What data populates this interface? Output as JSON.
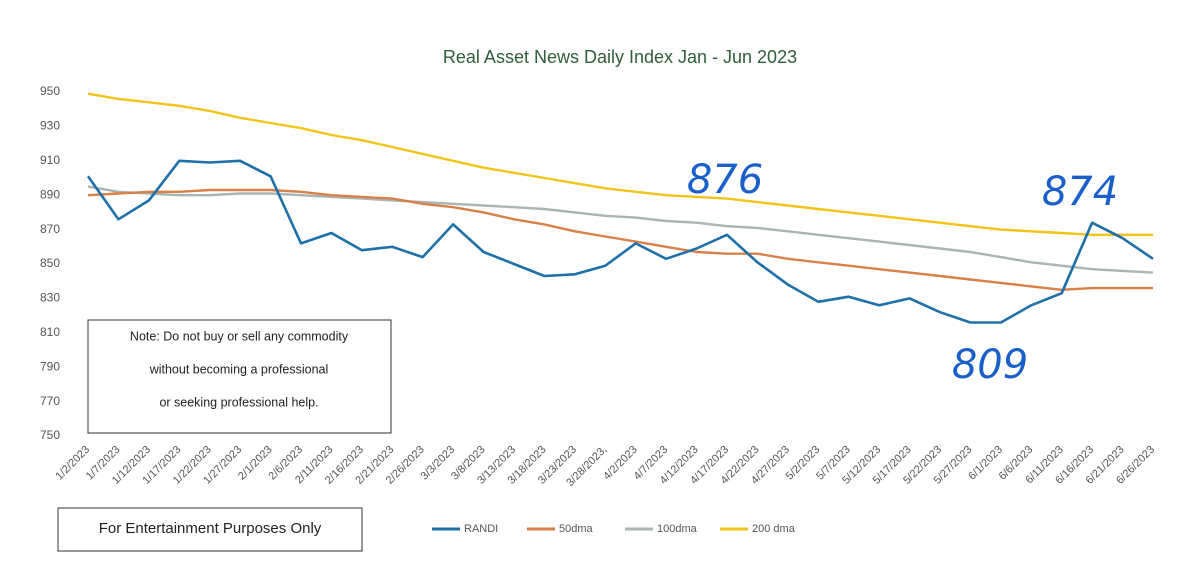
{
  "chart_data": {
    "type": "line",
    "title": "Real Asset News Daily Index   Jan - Jun 2023",
    "categories": [
      "1/2/2023",
      "1/7/2023",
      "1/12/2023",
      "1/17/2023",
      "1/22/2023",
      "1/27/2023",
      "2/1/2023",
      "2/6/2023",
      "2/11/2023",
      "2/16/2023",
      "2/21/2023",
      "2/26/2023",
      "3/3/2023",
      "3/8/2023",
      "3/13/2023",
      "3/18/2023",
      "3/23/2023",
      "3/28/2023,",
      "4/2/2023",
      "4/7/2023",
      "4/12/2023",
      "4/17/2023",
      "4/22/2023",
      "4/27/2023",
      "5/2/2023",
      "5/7/2023",
      "5/12/2023",
      "5/17/2023",
      "5/22/2023",
      "5/27/2023",
      "6/1/2023",
      "6/6/2023",
      "6/11/2023",
      "6/16/2023",
      "6/21/2023",
      "6/26/2023"
    ],
    "series": [
      {
        "name": "RANDI",
        "color": "#1f6fa8",
        "values": [
          901,
          876,
          887,
          910,
          909,
          910,
          901,
          862,
          868,
          858,
          860,
          854,
          873,
          857,
          850,
          843,
          844,
          849,
          862,
          853,
          859,
          867,
          851,
          838,
          828,
          831,
          826,
          830,
          822,
          816,
          816,
          826,
          833,
          874,
          865,
          853
        ]
      },
      {
        "name": "50dma",
        "color": "#d9804a",
        "values": [
          890,
          891,
          892,
          892,
          893,
          893,
          893,
          892,
          890,
          889,
          888,
          885,
          883,
          880,
          876,
          873,
          869,
          866,
          863,
          860,
          857,
          856,
          856,
          853,
          851,
          849,
          847,
          845,
          843,
          841,
          839,
          837,
          835,
          836,
          836,
          836
        ]
      },
      {
        "name": "100dma",
        "color": "#a9b5b0",
        "values": [
          895,
          892,
          891,
          890,
          890,
          891,
          891,
          890,
          889,
          888,
          887,
          886,
          885,
          884,
          883,
          882,
          880,
          878,
          877,
          875,
          874,
          872,
          871,
          869,
          867,
          865,
          863,
          861,
          859,
          857,
          854,
          851,
          849,
          847,
          846,
          845
        ]
      },
      {
        "name": "200 dma",
        "color": "#f2c417",
        "values": [
          949,
          946,
          944,
          942,
          939,
          935,
          932,
          929,
          925,
          922,
          918,
          914,
          910,
          906,
          903,
          900,
          897,
          894,
          892,
          890,
          889,
          888,
          886,
          884,
          882,
          880,
          878,
          876,
          874,
          872,
          870,
          869,
          868,
          867,
          867,
          867
        ]
      }
    ],
    "ylim": [
      750,
      950
    ],
    "yticks": [
      750,
      770,
      790,
      810,
      830,
      850,
      870,
      890,
      910,
      930,
      950
    ],
    "grid": false,
    "legend": "bottom",
    "annotations": [
      "876",
      "809",
      "874"
    ],
    "note": [
      "Note: Do not buy or sell any commodity",
      "without becoming a professional",
      "or seeking professional help."
    ],
    "disclaimer": "For Entertainment Purposes Only"
  }
}
